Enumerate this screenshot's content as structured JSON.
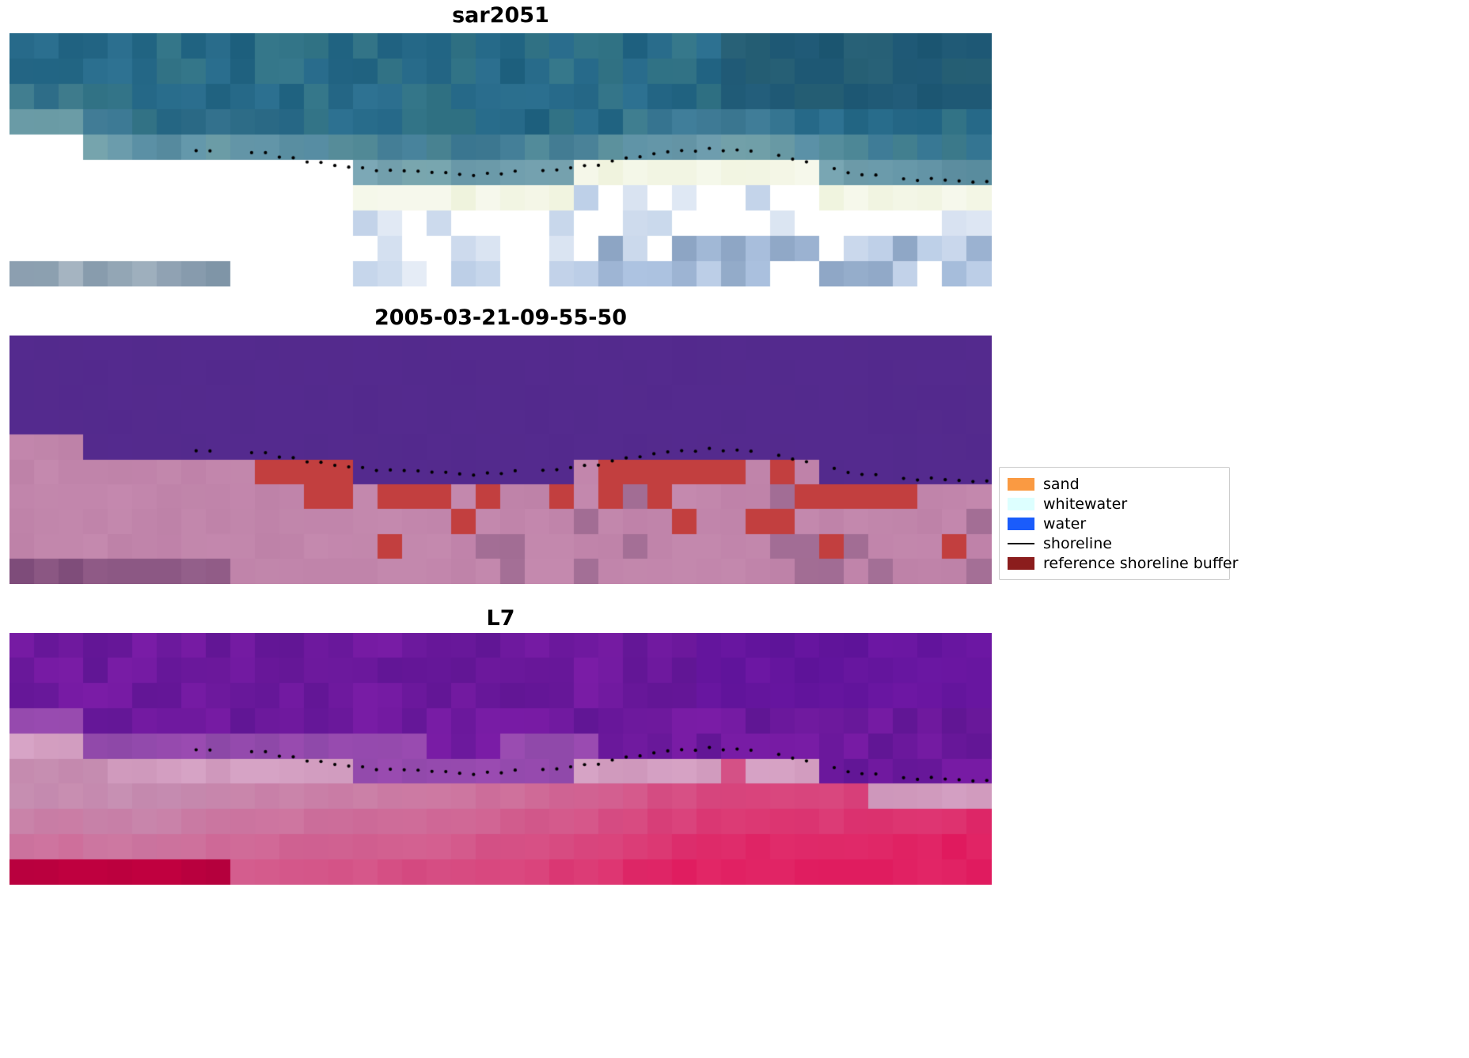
{
  "figure": {
    "background": "#ffffff"
  },
  "legend": {
    "position": "right",
    "items": [
      {
        "label": "sand",
        "color": "#fa9a42",
        "type": "patch"
      },
      {
        "label": "whitewater",
        "color": "#ddffff",
        "type": "patch"
      },
      {
        "label": "water",
        "color": "#1a5cfb",
        "type": "patch"
      },
      {
        "label": "shoreline",
        "color": "#000000",
        "type": "line"
      },
      {
        "label": "reference shoreline buffer",
        "color": "#8b1d1d",
        "type": "patch"
      }
    ]
  },
  "chart_data": {
    "type": "heatmap",
    "title": "",
    "legend_position": "right",
    "grid": {
      "cols": 40,
      "rows": 10
    },
    "panels": [
      {
        "id": "sar",
        "title": "sar2051",
        "kind": "rgb-satellite",
        "palette": {
          "water_deep": "#1d5f7d",
          "water_mid": "#2e7292",
          "water_green": "#3f7f86",
          "water_dark_corner": "#17465f",
          "foam": "#eef2da",
          "land": "#ffffff",
          "pale_blue": "#aec4e2",
          "blue_gray": "#8ba3c2",
          "strip": "#7d93a6"
        }
      },
      {
        "id": "classified",
        "title": "2005-03-21-09-55-50",
        "kind": "classified",
        "palette": {
          "water": "#542a8e",
          "sand": "#c489ae",
          "sand_alt": "#b87aa2",
          "sand_dark": "#8e5e86",
          "buffer": "#c23f3f",
          "strip": "#7c4a78"
        }
      },
      {
        "id": "l7",
        "title": "L7",
        "kind": "false-color",
        "palette": {
          "water": "#7a1ca6",
          "water_dark": "#5a1490",
          "water_dark2": "#5a10a0",
          "band": "#d7a4c6",
          "sand": "#c489ae",
          "hot": "#e01a5e",
          "strip": "#c1003f"
        }
      }
    ],
    "overlay": {
      "dot_color": "#000000",
      "shoreline_points": [
        [
          0.19,
          0.46
        ],
        [
          0.25,
          0.47
        ],
        [
          0.31,
          0.51
        ],
        [
          0.38,
          0.54
        ],
        [
          0.47,
          0.56
        ],
        [
          0.55,
          0.54
        ],
        [
          0.6,
          0.52
        ],
        [
          0.65,
          0.48
        ],
        [
          0.715,
          0.46
        ],
        [
          0.76,
          0.46
        ],
        [
          0.795,
          0.49
        ],
        [
          0.83,
          0.53
        ],
        [
          0.875,
          0.56
        ],
        [
          0.94,
          0.58
        ],
        [
          0.99,
          0.59
        ]
      ],
      "boundary_points": [
        [
          0.0,
          0.4
        ],
        [
          0.065,
          0.4
        ],
        [
          0.08,
          0.47
        ],
        [
          0.125,
          0.49
        ],
        [
          0.14,
          0.53
        ],
        [
          0.2,
          0.5
        ],
        [
          0.25,
          0.5
        ],
        [
          0.31,
          0.53
        ],
        [
          0.38,
          0.56
        ],
        [
          0.47,
          0.58
        ],
        [
          0.55,
          0.56
        ],
        [
          0.6,
          0.54
        ],
        [
          0.65,
          0.5
        ],
        [
          0.715,
          0.48
        ],
        [
          0.76,
          0.48
        ],
        [
          0.795,
          0.51
        ],
        [
          0.83,
          0.55
        ],
        [
          0.875,
          0.58
        ],
        [
          0.94,
          0.6
        ],
        [
          1.0,
          0.61
        ]
      ]
    }
  }
}
